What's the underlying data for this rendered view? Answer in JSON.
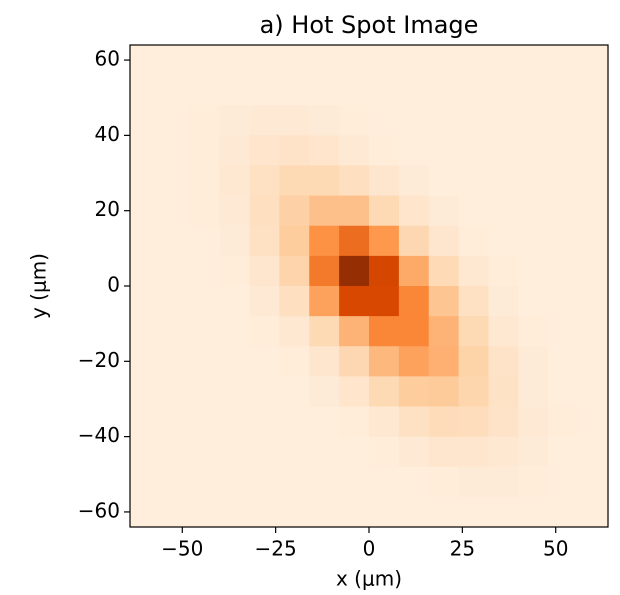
{
  "chart_data": {
    "type": "heatmap",
    "title": "a) Hot Spot Image",
    "xlabel": "x (μm)",
    "ylabel": "y (μm)",
    "xlim": [
      -64,
      64
    ],
    "ylim": [
      -64,
      64
    ],
    "vlim": [
      0,
      1
    ],
    "colors": [
      "#fff5eb",
      "#fdd0a2",
      "#fd8d3c",
      "#d94801",
      "#7f2704"
    ],
    "xticks": [
      {
        "value": -50,
        "label": "−50"
      },
      {
        "value": -25,
        "label": "−25"
      },
      0,
      25,
      50
    ],
    "yticks": [
      {
        "value": -60,
        "label": "−60"
      },
      {
        "value": -40,
        "label": "−40"
      },
      {
        "value": -20,
        "label": "−20"
      },
      0,
      20,
      40,
      60
    ],
    "values": [
      [
        0.05,
        0.05,
        0.05,
        0.05,
        0.05,
        0.05,
        0.05,
        0.05,
        0.05,
        0.05,
        0.05,
        0.05,
        0.05,
        0.05,
        0.05,
        0.05
      ],
      [
        0.05,
        0.05,
        0.05,
        0.05,
        0.05,
        0.05,
        0.05,
        0.05,
        0.05,
        0.05,
        0.05,
        0.05,
        0.05,
        0.05,
        0.05,
        0.05
      ],
      [
        0.05,
        0.05,
        0.06,
        0.07,
        0.08,
        0.08,
        0.07,
        0.06,
        0.05,
        0.05,
        0.05,
        0.05,
        0.05,
        0.05,
        0.05,
        0.05
      ],
      [
        0.05,
        0.05,
        0.06,
        0.08,
        0.11,
        0.12,
        0.11,
        0.08,
        0.06,
        0.05,
        0.05,
        0.05,
        0.05,
        0.05,
        0.05,
        0.05
      ],
      [
        0.05,
        0.05,
        0.06,
        0.09,
        0.14,
        0.19,
        0.19,
        0.15,
        0.1,
        0.07,
        0.05,
        0.05,
        0.05,
        0.05,
        0.05,
        0.05
      ],
      [
        0.05,
        0.05,
        0.06,
        0.08,
        0.15,
        0.24,
        0.31,
        0.31,
        0.19,
        0.11,
        0.07,
        0.05,
        0.05,
        0.05,
        0.05,
        0.05
      ],
      [
        0.05,
        0.05,
        0.05,
        0.07,
        0.14,
        0.26,
        0.48,
        0.62,
        0.46,
        0.2,
        0.1,
        0.06,
        0.05,
        0.05,
        0.05,
        0.05
      ],
      [
        0.05,
        0.05,
        0.05,
        0.06,
        0.1,
        0.22,
        0.57,
        0.94,
        0.76,
        0.39,
        0.18,
        0.09,
        0.06,
        0.05,
        0.05,
        0.05
      ],
      [
        0.05,
        0.05,
        0.05,
        0.05,
        0.08,
        0.15,
        0.42,
        0.75,
        0.75,
        0.52,
        0.29,
        0.14,
        0.07,
        0.05,
        0.05,
        0.05
      ],
      [
        0.05,
        0.05,
        0.05,
        0.05,
        0.06,
        0.09,
        0.19,
        0.36,
        0.52,
        0.52,
        0.36,
        0.19,
        0.09,
        0.06,
        0.05,
        0.05
      ],
      [
        0.05,
        0.05,
        0.05,
        0.05,
        0.05,
        0.06,
        0.1,
        0.2,
        0.34,
        0.42,
        0.37,
        0.23,
        0.12,
        0.07,
        0.05,
        0.05
      ],
      [
        0.05,
        0.05,
        0.05,
        0.05,
        0.05,
        0.05,
        0.07,
        0.11,
        0.19,
        0.26,
        0.27,
        0.21,
        0.13,
        0.07,
        0.05,
        0.05
      ],
      [
        0.05,
        0.05,
        0.05,
        0.05,
        0.05,
        0.05,
        0.05,
        0.06,
        0.09,
        0.14,
        0.17,
        0.16,
        0.12,
        0.08,
        0.06,
        0.05
      ],
      [
        0.05,
        0.05,
        0.05,
        0.05,
        0.05,
        0.05,
        0.05,
        0.05,
        0.06,
        0.08,
        0.1,
        0.1,
        0.09,
        0.07,
        0.05,
        0.05
      ],
      [
        0.05,
        0.05,
        0.05,
        0.05,
        0.05,
        0.05,
        0.05,
        0.05,
        0.05,
        0.05,
        0.06,
        0.07,
        0.07,
        0.06,
        0.05,
        0.05
      ],
      [
        0.05,
        0.05,
        0.05,
        0.05,
        0.05,
        0.05,
        0.05,
        0.05,
        0.05,
        0.05,
        0.05,
        0.05,
        0.05,
        0.05,
        0.05,
        0.05
      ]
    ]
  }
}
